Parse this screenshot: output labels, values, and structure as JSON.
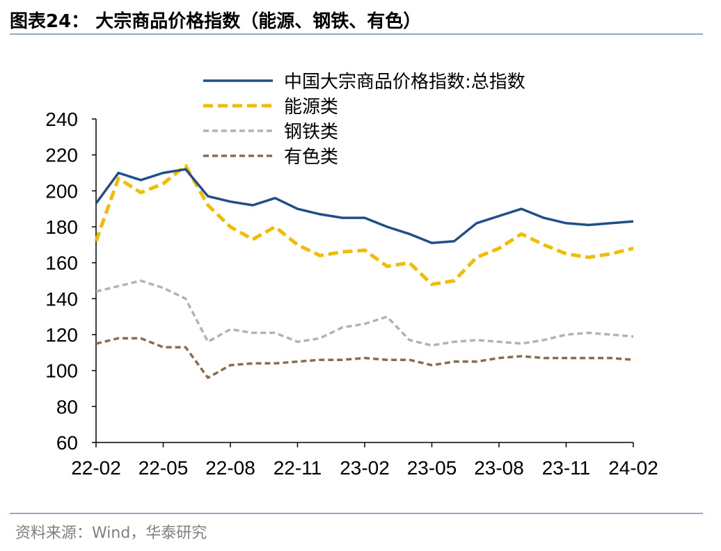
{
  "header": {
    "title": "图表24：  大宗商品价格指数（能源、钢铁、有色）"
  },
  "footer": {
    "source": "资料来源：Wind，华泰研究"
  },
  "colors": {
    "rule": "#8fa8c8"
  },
  "chart_data": {
    "type": "line",
    "x": [
      "22-02",
      "22-03",
      "22-04",
      "22-05",
      "22-06",
      "22-07",
      "22-08",
      "22-09",
      "22-10",
      "22-11",
      "22-12",
      "23-01",
      "23-02",
      "23-03",
      "23-04",
      "23-05",
      "23-06",
      "23-07",
      "23-08",
      "23-09",
      "23-10",
      "23-11",
      "23-12",
      "24-01",
      "24-02"
    ],
    "x_ticks": [
      "22-02",
      "22-05",
      "22-08",
      "22-11",
      "23-02",
      "23-05",
      "23-08",
      "23-11",
      "24-02"
    ],
    "y_ticks": [
      "240",
      "220",
      "200",
      "180",
      "160",
      "140",
      "120",
      "100",
      "80",
      "60"
    ],
    "ylim": [
      60,
      240
    ],
    "grid": false,
    "legend_position": "top-center",
    "series": [
      {
        "name": "中国大宗商品价格指数:总指数",
        "color": "#1f4e88",
        "style": "solid",
        "values": [
          193,
          210,
          206,
          210,
          212,
          197,
          194,
          192,
          196,
          190,
          187,
          185,
          185,
          180,
          176,
          171,
          172,
          182,
          186,
          190,
          185,
          182,
          181,
          182,
          183
        ]
      },
      {
        "name": "能源类",
        "color": "#f2bd00",
        "style": "dashed",
        "values": [
          172,
          207,
          199,
          204,
          214,
          192,
          180,
          173,
          180,
          170,
          164,
          166,
          167,
          158,
          160,
          148,
          150,
          163,
          168,
          176,
          170,
          165,
          163,
          165,
          168
        ]
      },
      {
        "name": "钢铁类",
        "color": "#b2b2b2",
        "style": "dashed",
        "values": [
          144,
          147,
          150,
          146,
          140,
          116,
          123,
          121,
          121,
          116,
          118,
          124,
          126,
          130,
          117,
          114,
          116,
          117,
          116,
          115,
          117,
          120,
          121,
          120,
          119
        ]
      },
      {
        "name": "有色类",
        "color": "#8c6b4c",
        "style": "dashed",
        "values": [
          115,
          118,
          118,
          113,
          113,
          96,
          103,
          104,
          104,
          105,
          106,
          106,
          107,
          106,
          106,
          103,
          105,
          105,
          107,
          108,
          107,
          107,
          107,
          107,
          106
        ]
      }
    ]
  }
}
